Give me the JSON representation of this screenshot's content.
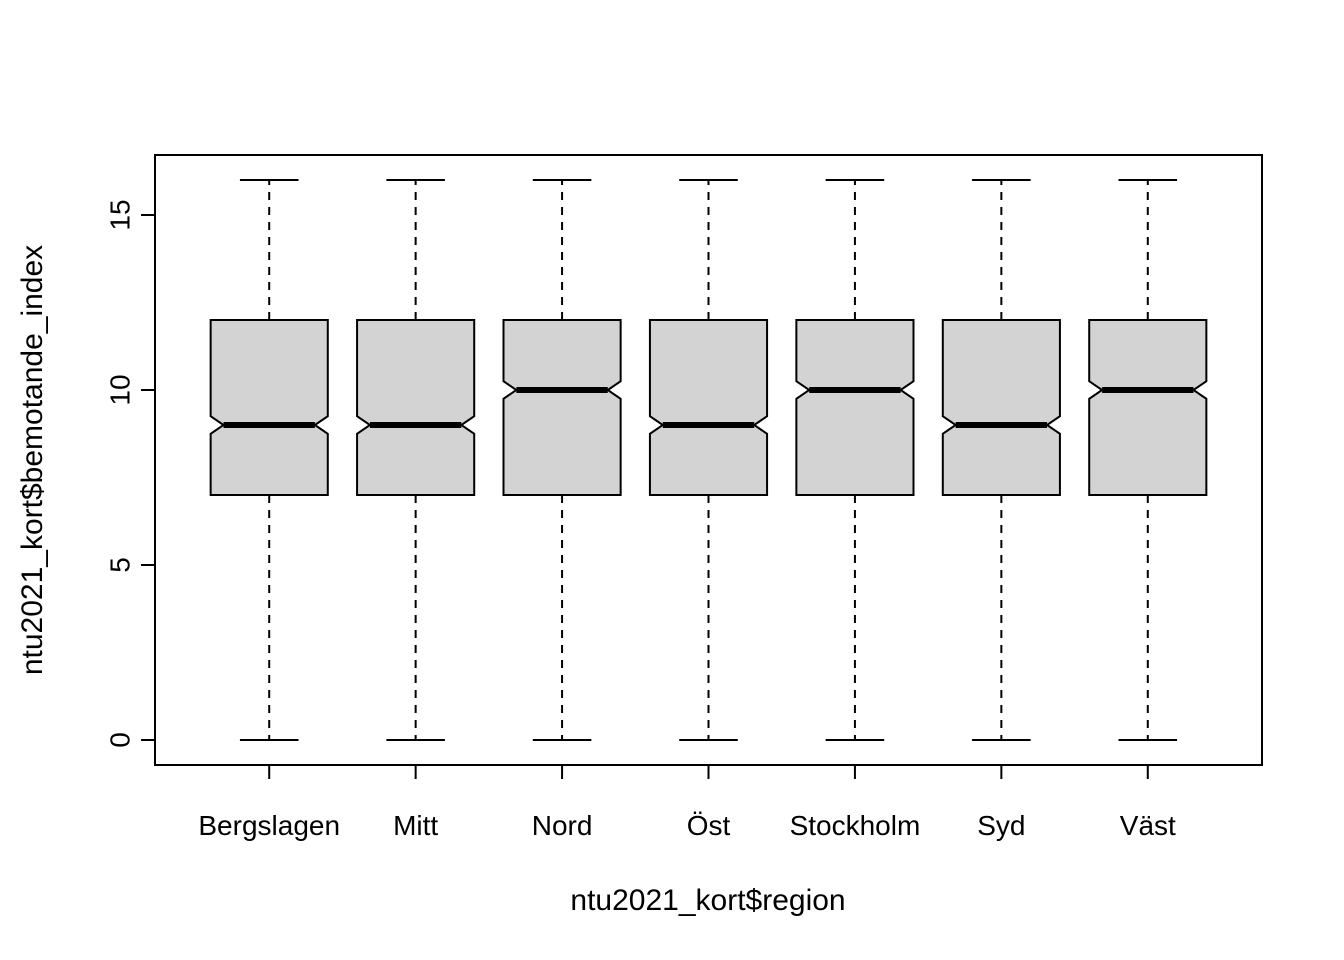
{
  "chart_data": {
    "type": "boxplot",
    "title": "",
    "xlabel": "ntu2021_kort$region",
    "ylabel": "ntu2021_kort$bemotande_index",
    "categories": [
      "Bergslagen",
      "Mitt",
      "Nord",
      "Öst",
      "Stockholm",
      "Syd",
      "Väst"
    ],
    "y_ticks": [
      0,
      5,
      10,
      15
    ],
    "ylim": [
      0,
      16
    ],
    "notched": true,
    "grid": false,
    "legend": "none",
    "box_fill": "#d3d3d3",
    "stroke_color": "#000000",
    "series": [
      {
        "name": "Bergslagen",
        "min": 0,
        "q1": 7,
        "median": 9,
        "q3": 12,
        "max": 16,
        "notch": 0.25
      },
      {
        "name": "Mitt",
        "min": 0,
        "q1": 7,
        "median": 9,
        "q3": 12,
        "max": 16,
        "notch": 0.25
      },
      {
        "name": "Nord",
        "min": 0,
        "q1": 7,
        "median": 10,
        "q3": 12,
        "max": 16,
        "notch": 0.25
      },
      {
        "name": "Öst",
        "min": 0,
        "q1": 7,
        "median": 9,
        "q3": 12,
        "max": 16,
        "notch": 0.25
      },
      {
        "name": "Stockholm",
        "min": 0,
        "q1": 7,
        "median": 10,
        "q3": 12,
        "max": 16,
        "notch": 0.25
      },
      {
        "name": "Syd",
        "min": 0,
        "q1": 7,
        "median": 9,
        "q3": 12,
        "max": 16,
        "notch": 0.25
      },
      {
        "name": "Väst",
        "min": 0,
        "q1": 7,
        "median": 10,
        "q3": 12,
        "max": 16,
        "notch": 0.25
      }
    ]
  }
}
